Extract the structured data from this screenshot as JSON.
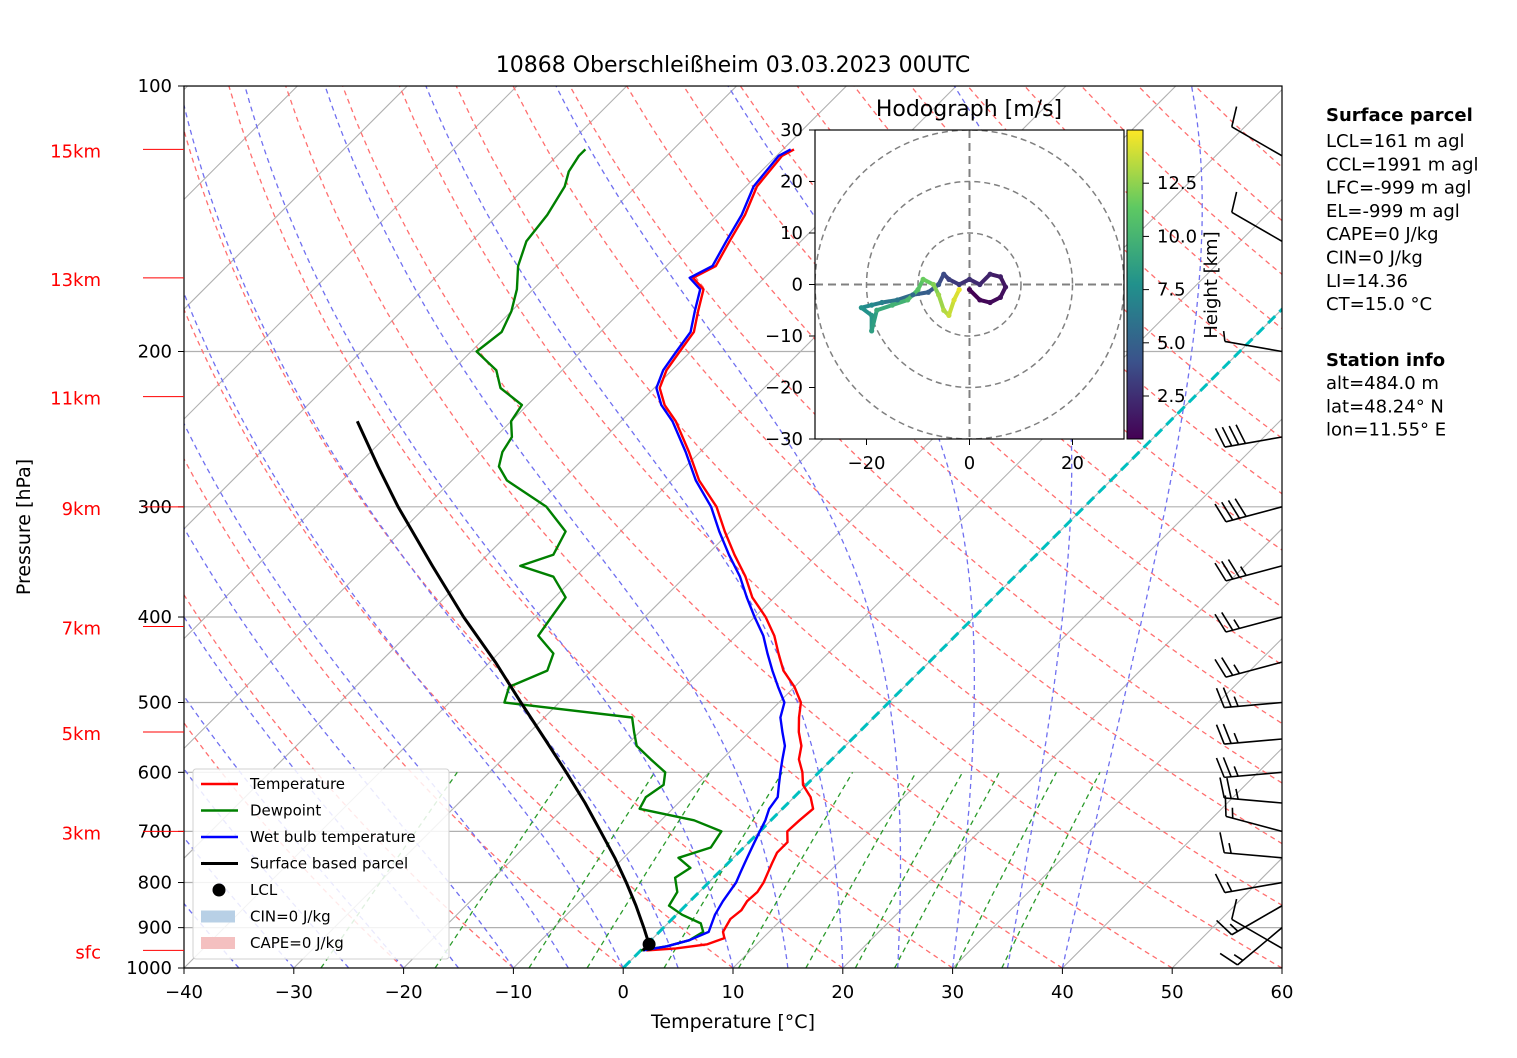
{
  "chart_data": {
    "type": "line",
    "title": "10868 Oberschleißheim 03.03.2023 00UTC",
    "xlabel": "Temperature [°C]",
    "ylabel": "Pressure [hPa]",
    "xlim": [
      -40,
      60
    ],
    "ylim": [
      1000,
      100
    ],
    "y_scale": "log",
    "skew": "skew-T",
    "x_ticks": [
      "−40",
      "−30",
      "−20",
      "−10",
      "0",
      "10",
      "20",
      "30",
      "40",
      "50",
      "60"
    ],
    "x_tick_values": [
      -40,
      -30,
      -20,
      -10,
      0,
      10,
      20,
      30,
      40,
      50,
      60
    ],
    "y_ticks": [
      "100",
      "200",
      "300",
      "400",
      "500",
      "600",
      "700",
      "800",
      "900",
      "1000"
    ],
    "y_tick_values": [
      100,
      200,
      300,
      400,
      500,
      600,
      700,
      800,
      900,
      1000
    ],
    "height_labels": [
      {
        "label": "sfc",
        "p": 955
      },
      {
        "label": "3km",
        "p": 700
      },
      {
        "label": "5km",
        "p": 540
      },
      {
        "label": "7km",
        "p": 410
      },
      {
        "label": "9km",
        "p": 300
      },
      {
        "label": "11km",
        "p": 225
      },
      {
        "label": "13km",
        "p": 165
      },
      {
        "label": "15km",
        "p": 118
      }
    ],
    "series": [
      {
        "name": "Temperature",
        "color": "#ff0000",
        "points": [
          [
            955,
            0.5
          ],
          [
            950,
            3.0
          ],
          [
            940,
            5.5
          ],
          [
            925,
            6.5
          ],
          [
            910,
            5.8
          ],
          [
            880,
            5.3
          ],
          [
            860,
            5.5
          ],
          [
            840,
            5.2
          ],
          [
            820,
            5.3
          ],
          [
            800,
            5.0
          ],
          [
            780,
            4.5
          ],
          [
            760,
            4.0
          ],
          [
            740,
            3.5
          ],
          [
            720,
            3.5
          ],
          [
            700,
            2.5
          ],
          [
            680,
            2.6
          ],
          [
            660,
            2.8
          ],
          [
            640,
            1.5
          ],
          [
            620,
            -0.3
          ],
          [
            600,
            -1.5
          ],
          [
            580,
            -3.0
          ],
          [
            560,
            -4.0
          ],
          [
            540,
            -5.5
          ],
          [
            520,
            -6.8
          ],
          [
            500,
            -8.0
          ],
          [
            480,
            -10.0
          ],
          [
            460,
            -12.5
          ],
          [
            440,
            -14.5
          ],
          [
            420,
            -16.5
          ],
          [
            400,
            -19.0
          ],
          [
            380,
            -22.0
          ],
          [
            360,
            -24.5
          ],
          [
            340,
            -27.5
          ],
          [
            320,
            -30.5
          ],
          [
            300,
            -33.5
          ],
          [
            280,
            -37.5
          ],
          [
            260,
            -41.0
          ],
          [
            240,
            -45.0
          ],
          [
            230,
            -47.5
          ],
          [
            220,
            -49.5
          ],
          [
            210,
            -50.5
          ],
          [
            200,
            -51.0
          ],
          [
            190,
            -51.5
          ],
          [
            180,
            -53.0
          ],
          [
            170,
            -54.5
          ],
          [
            165,
            -56.5
          ],
          [
            160,
            -55.5
          ],
          [
            150,
            -56.5
          ],
          [
            140,
            -57.5
          ],
          [
            130,
            -59.0
          ],
          [
            120,
            -59.5
          ],
          [
            118,
            -59.0
          ]
        ]
      },
      {
        "name": "Dewpoint",
        "color": "#008000",
        "points": [
          [
            955,
            0.0
          ],
          [
            945,
            2.0
          ],
          [
            930,
            3.5
          ],
          [
            910,
            4.0
          ],
          [
            890,
            3.0
          ],
          [
            870,
            0.5
          ],
          [
            850,
            -1.5
          ],
          [
            820,
            -2.0
          ],
          [
            790,
            -3.5
          ],
          [
            770,
            -3.0
          ],
          [
            750,
            -5.0
          ],
          [
            730,
            -3.0
          ],
          [
            700,
            -3.5
          ],
          [
            680,
            -7.0
          ],
          [
            660,
            -13.0
          ],
          [
            640,
            -13.5
          ],
          [
            620,
            -13.0
          ],
          [
            600,
            -14.0
          ],
          [
            580,
            -16.5
          ],
          [
            560,
            -19.0
          ],
          [
            540,
            -20.5
          ],
          [
            520,
            -22.0
          ],
          [
            500,
            -35.0
          ],
          [
            480,
            -36.0
          ],
          [
            460,
            -34.0
          ],
          [
            440,
            -35.0
          ],
          [
            420,
            -38.0
          ],
          [
            400,
            -38.5
          ],
          [
            380,
            -39.0
          ],
          [
            360,
            -42.0
          ],
          [
            350,
            -46.0
          ],
          [
            340,
            -44.0
          ],
          [
            320,
            -45.0
          ],
          [
            300,
            -49.0
          ],
          [
            280,
            -55.0
          ],
          [
            270,
            -57.0
          ],
          [
            260,
            -58.0
          ],
          [
            250,
            -58.5
          ],
          [
            240,
            -60.0
          ],
          [
            230,
            -60.5
          ],
          [
            220,
            -64.0
          ],
          [
            210,
            -66.0
          ],
          [
            200,
            -69.5
          ],
          [
            190,
            -69.0
          ],
          [
            180,
            -70.0
          ],
          [
            170,
            -71.5
          ],
          [
            160,
            -73.5
          ],
          [
            150,
            -75.0
          ],
          [
            140,
            -75.5
          ],
          [
            130,
            -76.5
          ],
          [
            125,
            -77.5
          ],
          [
            120,
            -78.0
          ],
          [
            118,
            -78.0
          ]
        ]
      },
      {
        "name": "Wet bulb temperature",
        "color": "#0000ff",
        "points": [
          [
            955,
            0.2
          ],
          [
            945,
            2.0
          ],
          [
            930,
            3.5
          ],
          [
            910,
            4.5
          ],
          [
            890,
            4.0
          ],
          [
            870,
            3.5
          ],
          [
            840,
            3.0
          ],
          [
            800,
            2.5
          ],
          [
            780,
            2.0
          ],
          [
            760,
            1.5
          ],
          [
            740,
            1.0
          ],
          [
            720,
            0.5
          ],
          [
            700,
            0.0
          ],
          [
            680,
            -0.5
          ],
          [
            660,
            -1.2
          ],
          [
            640,
            -1.5
          ],
          [
            620,
            -2.5
          ],
          [
            600,
            -3.5
          ],
          [
            580,
            -4.5
          ],
          [
            560,
            -5.5
          ],
          [
            540,
            -7.0
          ],
          [
            520,
            -8.5
          ],
          [
            500,
            -9.5
          ],
          [
            480,
            -11.5
          ],
          [
            460,
            -13.5
          ],
          [
            440,
            -15.5
          ],
          [
            420,
            -17.5
          ],
          [
            400,
            -20.0
          ],
          [
            380,
            -22.5
          ],
          [
            360,
            -25.0
          ],
          [
            340,
            -28.0
          ],
          [
            320,
            -31.0
          ],
          [
            300,
            -34.0
          ],
          [
            280,
            -37.8
          ],
          [
            260,
            -41.3
          ],
          [
            240,
            -45.3
          ],
          [
            230,
            -47.8
          ],
          [
            220,
            -49.8
          ],
          [
            210,
            -50.8
          ],
          [
            200,
            -51.3
          ],
          [
            190,
            -51.8
          ],
          [
            180,
            -53.3
          ],
          [
            170,
            -54.8
          ],
          [
            165,
            -56.8
          ],
          [
            160,
            -55.8
          ],
          [
            150,
            -56.8
          ],
          [
            140,
            -57.8
          ],
          [
            130,
            -59.3
          ],
          [
            120,
            -59.8
          ],
          [
            118,
            -59.3
          ]
        ]
      },
      {
        "name": "Surface based parcel",
        "color": "#000000",
        "points": [
          [
            955,
            0.2
          ],
          [
            940,
            0.2
          ],
          [
            900,
            -1.8
          ],
          [
            850,
            -4.5
          ],
          [
            800,
            -7.5
          ],
          [
            750,
            -10.8
          ],
          [
            700,
            -14.5
          ],
          [
            650,
            -18.5
          ],
          [
            600,
            -23.0
          ],
          [
            550,
            -28.0
          ],
          [
            500,
            -33.5
          ],
          [
            450,
            -39.5
          ],
          [
            400,
            -46.5
          ],
          [
            350,
            -54.0
          ],
          [
            300,
            -62.5
          ],
          [
            270,
            -68.0
          ],
          [
            240,
            -74.0
          ]
        ]
      }
    ],
    "lcl_marker": {
      "label": "LCL",
      "p": 940,
      "t": 0.2
    },
    "highlight_line": {
      "color": "#00bfbf",
      "t_at_1000": 0
    },
    "legend": [
      {
        "label": "Temperature",
        "color": "#ff0000",
        "kind": "line"
      },
      {
        "label": "Dewpoint",
        "color": "#008000",
        "kind": "line"
      },
      {
        "label": "Wet bulb temperature",
        "color": "#0000ff",
        "kind": "line"
      },
      {
        "label": "Surface based parcel",
        "color": "#000000",
        "kind": "line"
      },
      {
        "label": "LCL",
        "color": "#000000",
        "kind": "dot"
      },
      {
        "label": "CIN=0 J/kg",
        "color": "#b8d0e6",
        "kind": "patch"
      },
      {
        "label": "CAPE=0 J/kg",
        "color": "#f4c0c0",
        "kind": "patch"
      }
    ],
    "legend_position": "lower-left",
    "grid": true,
    "wind_barbs": [
      {
        "p": 950,
        "speed_kt": 10,
        "dir_deg": 300
      },
      {
        "p": 900,
        "speed_kt": 15,
        "dir_deg": 230
      },
      {
        "p": 850,
        "speed_kt": 15,
        "dir_deg": 240
      },
      {
        "p": 800,
        "speed_kt": 15,
        "dir_deg": 260
      },
      {
        "p": 750,
        "speed_kt": 15,
        "dir_deg": 275
      },
      {
        "p": 700,
        "speed_kt": 15,
        "dir_deg": 285
      },
      {
        "p": 650,
        "speed_kt": 25,
        "dir_deg": 275
      },
      {
        "p": 600,
        "speed_kt": 25,
        "dir_deg": 265
      },
      {
        "p": 550,
        "speed_kt": 25,
        "dir_deg": 265
      },
      {
        "p": 500,
        "speed_kt": 25,
        "dir_deg": 265
      },
      {
        "p": 450,
        "speed_kt": 25,
        "dir_deg": 255
      },
      {
        "p": 400,
        "speed_kt": 25,
        "dir_deg": 255
      },
      {
        "p": 350,
        "speed_kt": 35,
        "dir_deg": 255
      },
      {
        "p": 300,
        "speed_kt": 40,
        "dir_deg": 255
      },
      {
        "p": 250,
        "speed_kt": 40,
        "dir_deg": 260
      },
      {
        "p": 200,
        "speed_kt": 5,
        "dir_deg": 280
      },
      {
        "p": 150,
        "speed_kt": 10,
        "dir_deg": 300
      },
      {
        "p": 120,
        "speed_kt": 10,
        "dir_deg": 300
      }
    ],
    "hodograph": {
      "title": "Hodograph [m/s]",
      "xlim": [
        -30,
        30
      ],
      "ylim": [
        -30,
        30
      ],
      "x_ticks": [
        "−20",
        "0",
        "20"
      ],
      "x_tick_values": [
        -20,
        0,
        20
      ],
      "y_ticks": [
        "30",
        "20",
        "10",
        "0",
        "−10",
        "−20",
        "−30"
      ],
      "y_tick_values": [
        30,
        20,
        10,
        0,
        -10,
        -20,
        -30
      ],
      "rings": [
        10,
        20,
        30
      ],
      "colorbar_label": "Height [km]",
      "colorbar_ticks": [
        "2.5",
        "5.0",
        "7.5",
        "10.0",
        "12.5"
      ],
      "colorbar_tick_values": [
        2.5,
        5.0,
        7.5,
        10.0,
        12.5
      ],
      "colorbar_range": [
        0.48,
        15
      ],
      "points": [
        {
          "u": 0,
          "v": -1,
          "z": 0.5
        },
        {
          "u": 2,
          "v": -3,
          "z": 0.7
        },
        {
          "u": 4,
          "v": -3.5,
          "z": 0.9
        },
        {
          "u": 6,
          "v": -2.5,
          "z": 1.1
        },
        {
          "u": 7,
          "v": -0.5,
          "z": 1.4
        },
        {
          "u": 6,
          "v": 1.5,
          "z": 1.7
        },
        {
          "u": 4,
          "v": 2,
          "z": 2.0
        },
        {
          "u": 2,
          "v": 0,
          "z": 2.3
        },
        {
          "u": 0,
          "v": 1,
          "z": 2.6
        },
        {
          "u": -2,
          "v": 0,
          "z": 3.0
        },
        {
          "u": -4,
          "v": 1,
          "z": 3.4
        },
        {
          "u": -5,
          "v": 2,
          "z": 3.8
        },
        {
          "u": -6,
          "v": 0,
          "z": 4.3
        },
        {
          "u": -8,
          "v": -1.5,
          "z": 4.8
        },
        {
          "u": -11,
          "v": -2,
          "z": 5.5
        },
        {
          "u": -14,
          "v": -3,
          "z": 6.2
        },
        {
          "u": -17,
          "v": -3.5,
          "z": 6.8
        },
        {
          "u": -19,
          "v": -4,
          "z": 7.4
        },
        {
          "u": -21,
          "v": -4.5,
          "z": 7.8
        },
        {
          "u": -19,
          "v": -6,
          "z": 8.2
        },
        {
          "u": -19,
          "v": -9,
          "z": 8.6
        },
        {
          "u": -18,
          "v": -5,
          "z": 9.2
        },
        {
          "u": -15,
          "v": -4,
          "z": 9.8
        },
        {
          "u": -12,
          "v": -3,
          "z": 10.4
        },
        {
          "u": -10,
          "v": -1,
          "z": 11.0
        },
        {
          "u": -9,
          "v": 1,
          "z": 11.6
        },
        {
          "u": -7,
          "v": 0,
          "z": 12.2
        },
        {
          "u": -6,
          "v": -2,
          "z": 12.8
        },
        {
          "u": -5,
          "v": -5,
          "z": 13.3
        },
        {
          "u": -4,
          "v": -6,
          "z": 13.8
        },
        {
          "u": -3,
          "v": -3,
          "z": 14.2
        },
        {
          "u": -2,
          "v": -1,
          "z": 14.6
        }
      ]
    }
  },
  "surface_parcel": {
    "title": "Surface parcel",
    "lines": [
      "LCL=161 m agl",
      "CCL=1991 m agl",
      "LFC=-999 m agl",
      "EL=-999 m agl",
      "CAPE=0 J/kg",
      "CIN=0 J/kg",
      "LI=14.36",
      "CT=15.0 °C"
    ]
  },
  "station_info": {
    "title": "Station info",
    "lines": [
      "alt=484.0 m",
      "lat=48.24° N",
      "lon=11.55° E"
    ]
  }
}
